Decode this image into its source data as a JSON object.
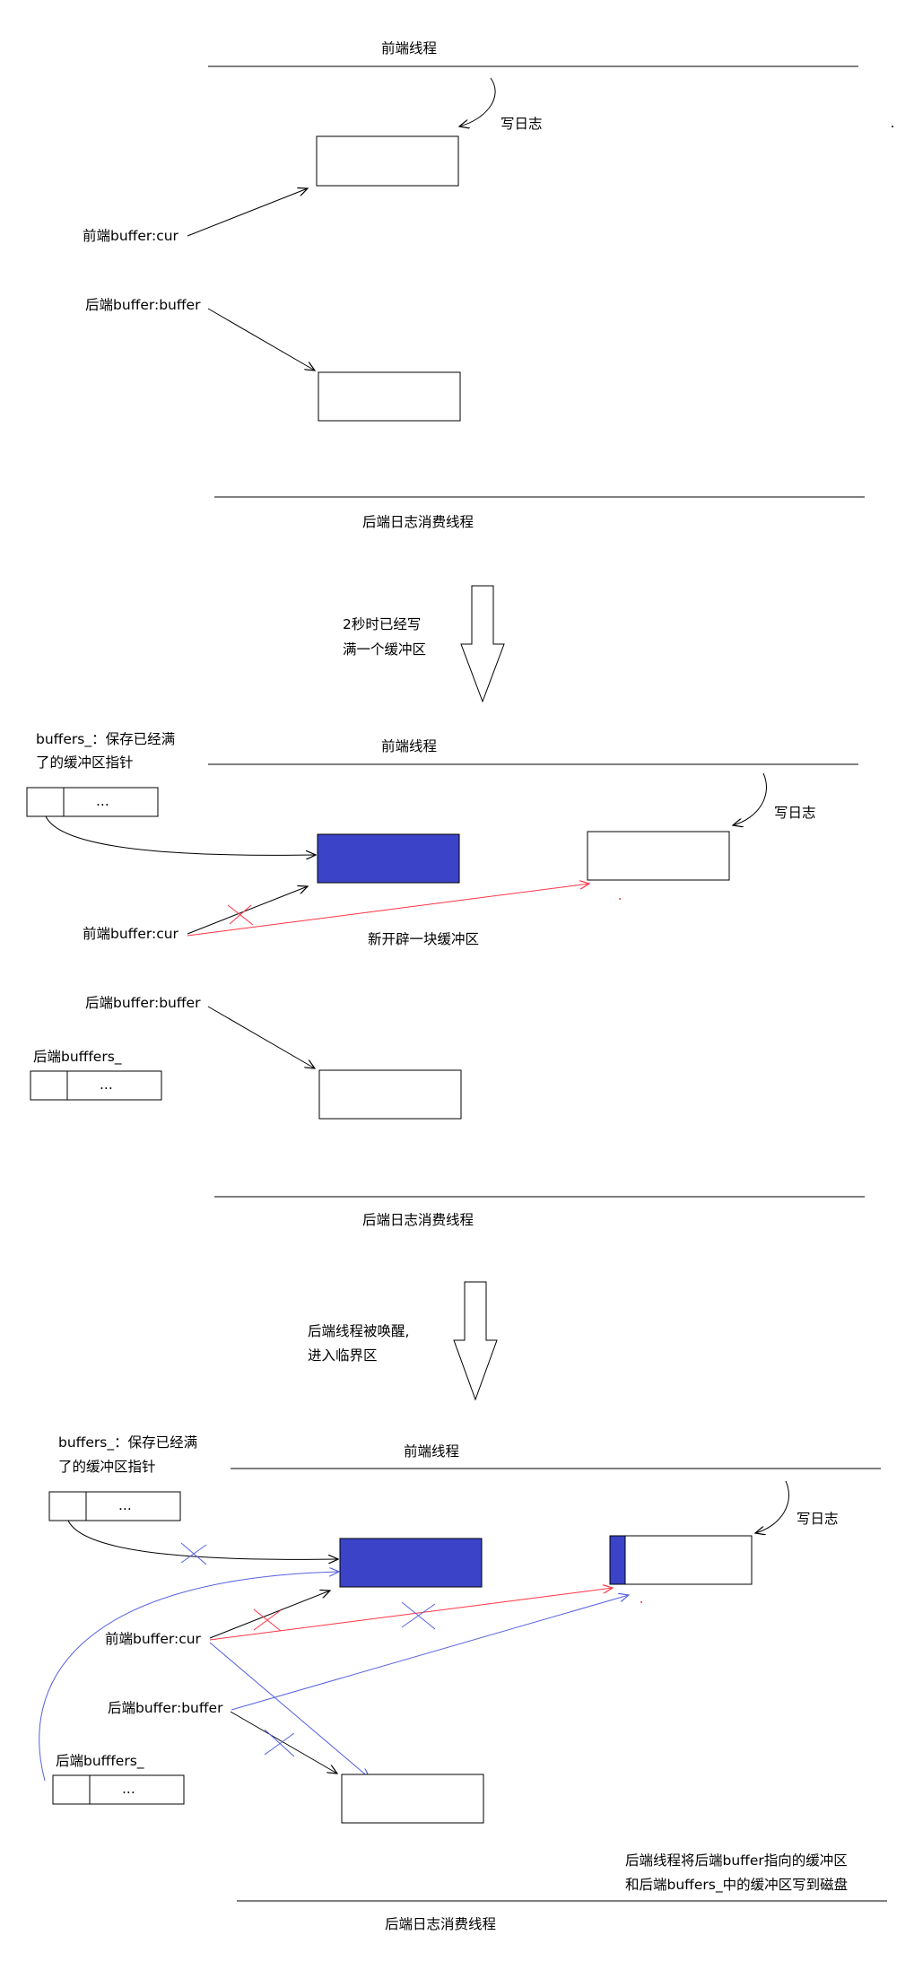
{
  "stage1": {
    "frontend_thread": "前端线程",
    "write_log": "写日志",
    "front_buffer_cur": "前端buffer:cur",
    "back_buffer_buffer": "后端buffer:buffer",
    "backend_thread": "后端日志消费线程"
  },
  "transition1": {
    "line1": "2秒时已经写",
    "line2": "满一个缓冲区"
  },
  "stage2": {
    "buffers_note_line1": "buffers_：保存已经满",
    "buffers_note_line2": "了的缓冲区指针",
    "frontend_thread": "前端线程",
    "write_log": "写日志",
    "ellipsis_1": "...",
    "front_buffer_cur": "前端buffer:cur",
    "new_buffer_note": "新开辟一块缓冲区",
    "back_buffer_buffer": "后端buffer:buffer",
    "back_buffers_label": "后端bufffers_",
    "ellipsis_2": "...",
    "backend_thread": "后端日志消费线程"
  },
  "transition2": {
    "line1": "后端线程被唤醒,",
    "line2": "进入临界区"
  },
  "stage3": {
    "buffers_note_line1": "buffers_：保存已经满",
    "buffers_note_line2": "了的缓冲区指针",
    "frontend_thread": "前端线程",
    "write_log": "写日志",
    "ellipsis_1": "...",
    "front_buffer_cur": "前端buffer:cur",
    "back_buffer_buffer": "后端buffer:buffer",
    "back_buffers_label": "后端bufffers_",
    "ellipsis_2": "...",
    "final_note_line1": "后端线程将后端buffer指向的缓冲区",
    "final_note_line2": "和后端buffers_中的缓冲区写到磁盘",
    "backend_thread": "后端日志消费线程"
  },
  "colors": {
    "filled_buffer": "#3b44c8",
    "swap_arrow": "#5561e0",
    "redirect_arrow": "#ff3344",
    "line": "#000000"
  }
}
